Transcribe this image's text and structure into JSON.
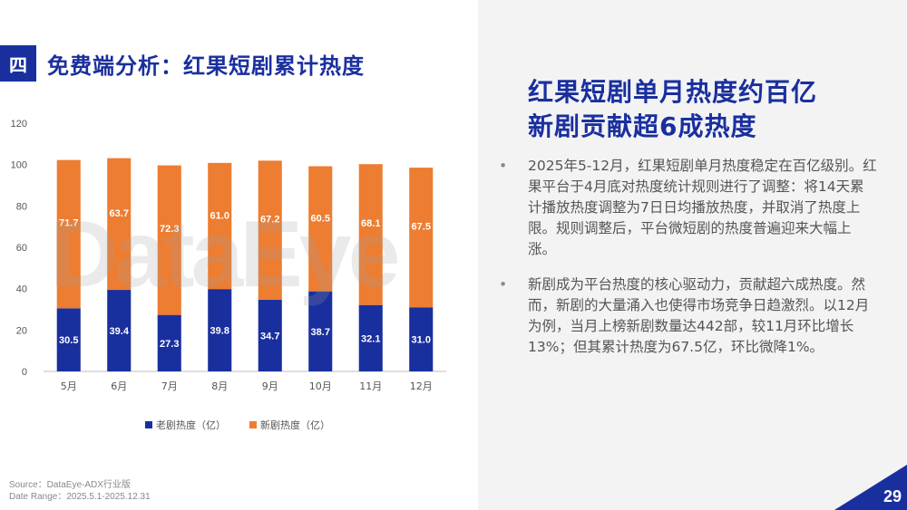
{
  "section": {
    "badge": "四",
    "title": "免费端分析：红果短剧累计热度"
  },
  "watermark": "DataEye",
  "chart_data": {
    "type": "bar",
    "stacked": true,
    "categories": [
      "5月",
      "6月",
      "7月",
      "8月",
      "9月",
      "10月",
      "11月",
      "12月"
    ],
    "series": [
      {
        "name": "老剧热度（亿）",
        "color": "#1a2f9e",
        "values": [
          30.5,
          39.4,
          27.3,
          39.8,
          34.7,
          38.7,
          32.1,
          31.0
        ]
      },
      {
        "name": "新剧热度（亿）",
        "color": "#ed7d31",
        "values": [
          71.7,
          63.7,
          72.3,
          61.0,
          67.2,
          60.5,
          68.1,
          67.5
        ]
      }
    ],
    "yticks": [
      0,
      20,
      40,
      60,
      80,
      100,
      120
    ],
    "ylim": [
      0,
      120
    ],
    "grid": false,
    "legend": "bottom"
  },
  "source": {
    "line1": "Source：DataEye-ADX行业版",
    "line2": "Date Range：2025.5.1-2025.12.31"
  },
  "headline": {
    "line1": "红果短剧单月热度约百亿",
    "line2": "新剧贡献超6成热度"
  },
  "bullets": [
    {
      "dot": "•",
      "text": "2025年5-12月，红果短剧单月热度稳定在百亿级别。红果平台于4月底对热度统计规则进行了调整：将14天累计播放热度调整为7日日均播放热度，并取消了热度上限。规则调整后，平台微短剧的热度普遍迎来大幅上涨。"
    },
    {
      "dot": "•",
      "text": "新剧成为平台热度的核心驱动力，贡献超六成热度。然而，新剧的大量涌入也使得市场竞争日趋激烈。以12月为例，当月上榜新剧数量达442部，较11月环比增长13%；但其累计热度为67.5亿，环比微降1%。"
    }
  ],
  "page_number": "29",
  "colors": {
    "brand_blue": "#1a2f9e",
    "accent_orange": "#ed7d31",
    "panel_gray": "#f3f3f4"
  }
}
